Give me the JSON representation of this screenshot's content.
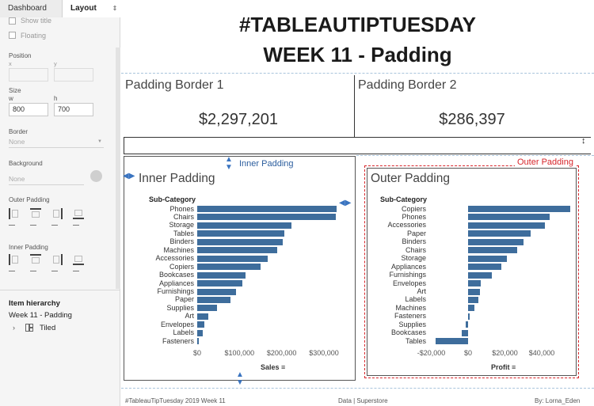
{
  "panel": {
    "tabs": {
      "dashboard": "Dashboard",
      "layout": "Layout",
      "arrow": "⇕"
    },
    "show_title": "Show title",
    "floating": "Floating",
    "position_label": "Position",
    "x_label": "x",
    "y_label": "y",
    "size_label": "Size",
    "w_label": "w",
    "h_label": "h",
    "w_value": "800",
    "h_value": "700",
    "border_label": "Border",
    "border_value": "None",
    "background_label": "Background",
    "background_value": "None",
    "outer_padding_label": "Outer Padding",
    "inner_padding_label": "Inner Padding",
    "item_hierarchy_label": "Item hierarchy",
    "hierarchy_root": "Week 11 - Padding",
    "hierarchy_child": "Tiled",
    "icons": [
      "chevron-right-icon",
      "tiled-container-icon",
      "color-swatch-icon",
      "padding-all-icon",
      "padding-top-icon",
      "padding-right-icon",
      "padding-bottom-icon"
    ]
  },
  "dashboard": {
    "title_line1": "#TABLEAUTIPTUESDAY",
    "title_line2": "WEEK 11 - Padding",
    "kpi1": {
      "title": "Padding Border 1",
      "value": "$2,297,201"
    },
    "kpi2": {
      "title": "Padding Border 2",
      "value": "$286,397"
    },
    "inner": {
      "title": "Inner Padding",
      "note": "Inner Padding",
      "subcat_header": "Sub-Category",
      "axis_title": "Sales",
      "sort_icon": "≡"
    },
    "outer": {
      "title": "Outer Padding",
      "note": "Outer Padding",
      "subcat_header": "Sub-Category",
      "axis_title": "Profit",
      "sort_icon": "≡"
    },
    "footer": {
      "left": "#TableauTipTuesday 2019 Week 11",
      "middle": "Data | Superstore",
      "right": "By: Lorna_Eden"
    },
    "colors": {
      "bar": "#3e6d9c",
      "note_blue": "#2c5e9e",
      "note_red": "#d7262b"
    }
  },
  "chart_data": [
    {
      "type": "bar",
      "title": "Inner Padding",
      "ylabel": "Sub-Category",
      "xlabel": "Sales",
      "categories": [
        "Phones",
        "Chairs",
        "Storage",
        "Tables",
        "Binders",
        "Machines",
        "Accessories",
        "Copiers",
        "Bookcases",
        "Appliances",
        "Furnishings",
        "Paper",
        "Supplies",
        "Art",
        "Envelopes",
        "Labels",
        "Fasteners"
      ],
      "values": [
        330007,
        328449,
        223844,
        206966,
        203413,
        189239,
        167380,
        149528,
        114880,
        107532,
        91705,
        78479,
        46674,
        27119,
        16476,
        12486,
        3024
      ],
      "xlim": [
        0,
        330000
      ],
      "ticks": [
        "$0",
        "$100,000",
        "$200,000",
        "$300,000"
      ],
      "tick_values": [
        0,
        100000,
        200000,
        300000
      ]
    },
    {
      "type": "bar",
      "title": "Outer Padding",
      "ylabel": "Sub-Category",
      "xlabel": "Profit",
      "categories": [
        "Copiers",
        "Phones",
        "Accessories",
        "Paper",
        "Binders",
        "Chairs",
        "Storage",
        "Appliances",
        "Furnishings",
        "Envelopes",
        "Art",
        "Labels",
        "Machines",
        "Fasteners",
        "Supplies",
        "Bookcases",
        "Tables"
      ],
      "values": [
        55618,
        44516,
        41937,
        34054,
        30222,
        26590,
        21279,
        18138,
        13059,
        6964,
        6528,
        5546,
        3385,
        950,
        -1189,
        -3473,
        -17725
      ],
      "xlim": [
        -20000,
        57000
      ],
      "ticks": [
        "-$20,000",
        "$0",
        "$20,000",
        "$40,000"
      ],
      "tick_values": [
        -20000,
        0,
        20000,
        40000
      ]
    }
  ]
}
